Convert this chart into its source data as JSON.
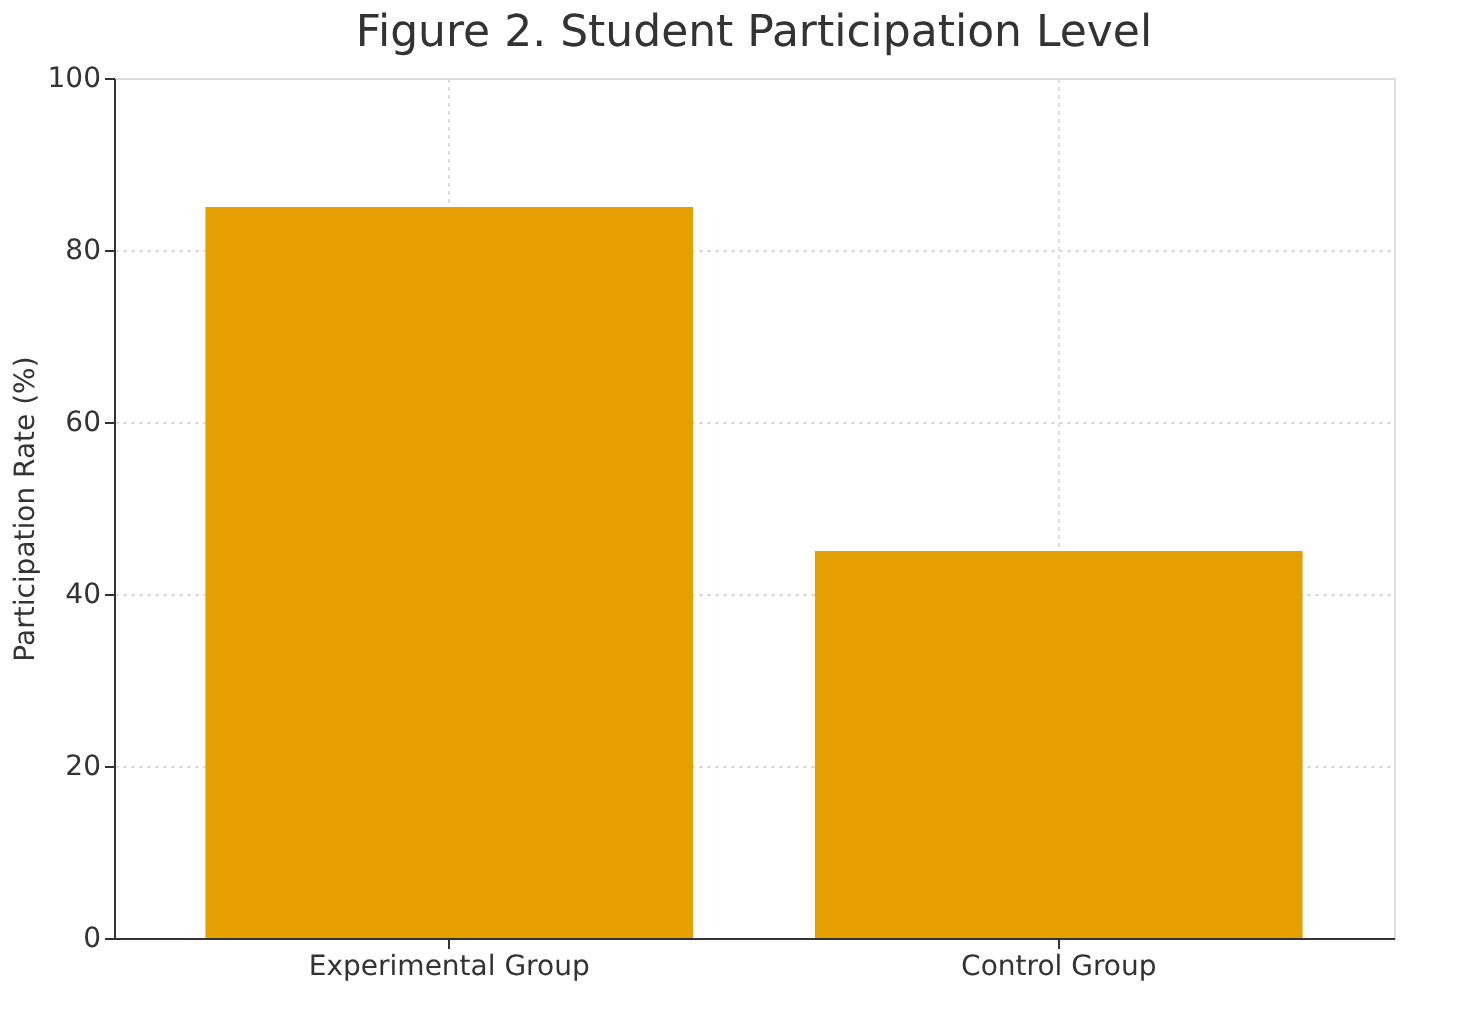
{
  "chart_data": {
    "type": "bar",
    "title": "Figure 2. Student Participation Level",
    "ylabel": "Participation Rate (%)",
    "categories": [
      "Experimental Group",
      "Control Group"
    ],
    "values": [
      85,
      45
    ],
    "color": "#e5a000",
    "ylim": [
      0,
      100
    ],
    "yticks": [
      0,
      20,
      40,
      60,
      80,
      100
    ],
    "grid": true
  }
}
